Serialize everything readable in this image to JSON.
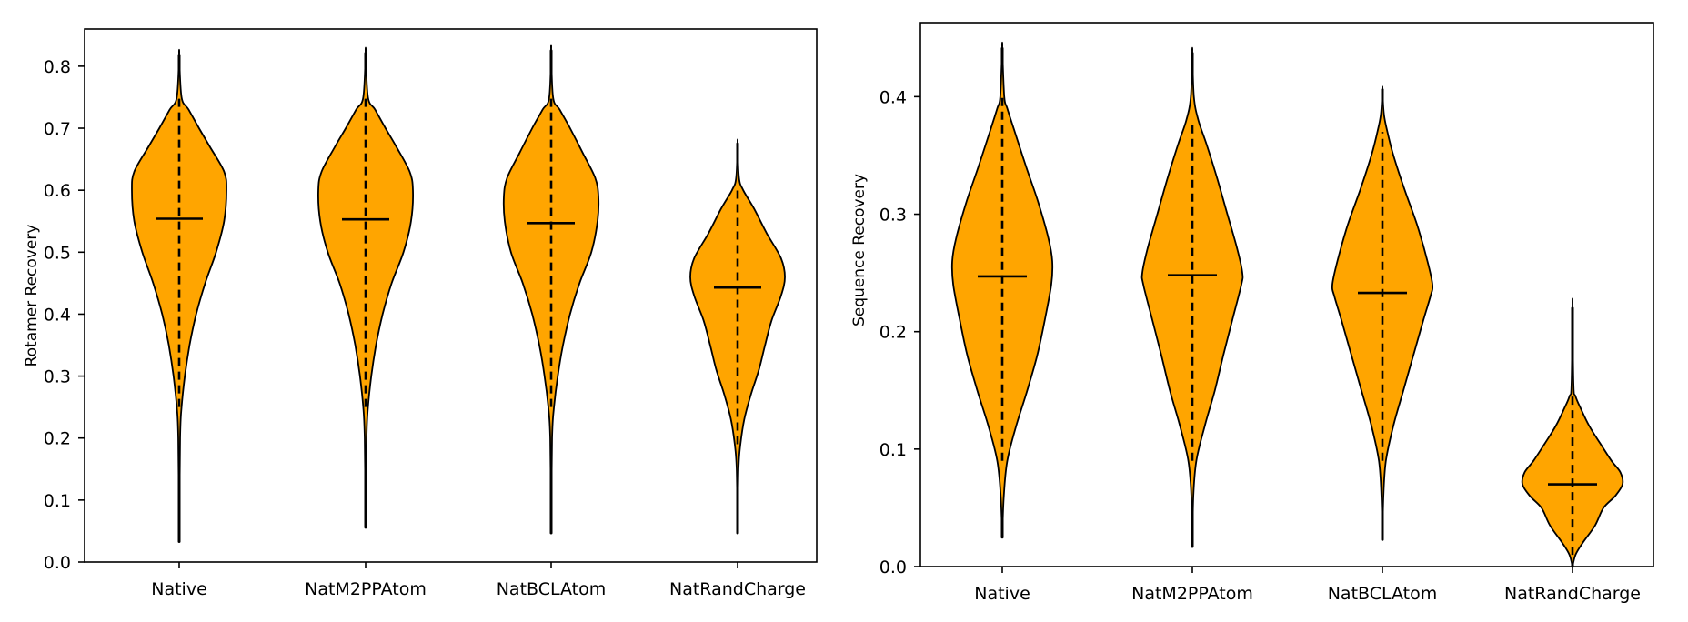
{
  "chart_data": [
    {
      "type": "violin",
      "title": "",
      "xlabel": "",
      "ylabel": "Rotamer Recovery",
      "ylim": [
        0.0,
        0.86
      ],
      "yticks": [
        0.0,
        0.1,
        0.2,
        0.3,
        0.4,
        0.5,
        0.6,
        0.7,
        0.8
      ],
      "ytick_labels": [
        "0.0",
        "0.1",
        "0.2",
        "0.3",
        "0.4",
        "0.5",
        "0.6",
        "0.7",
        "0.8"
      ],
      "categories": [
        "Native",
        "NatM2PPAtom",
        "NatBCLAtom",
        "NatRandCharge"
      ],
      "grid": false,
      "fill_color": "#FFA500",
      "edge_color": "#000000",
      "series": [
        {
          "name": "Native",
          "min": 0.033,
          "max": 0.818,
          "mean": 0.554,
          "profile": [
            [
              0.033,
              0.0
            ],
            [
              0.2,
              0.02
            ],
            [
              0.25,
              0.05
            ],
            [
              0.3,
              0.12
            ],
            [
              0.35,
              0.22
            ],
            [
              0.4,
              0.36
            ],
            [
              0.45,
              0.55
            ],
            [
              0.5,
              0.78
            ],
            [
              0.55,
              0.95
            ],
            [
              0.6,
              1.0
            ],
            [
              0.63,
              0.95
            ],
            [
              0.67,
              0.65
            ],
            [
              0.7,
              0.42
            ],
            [
              0.73,
              0.2
            ],
            [
              0.75,
              0.05
            ],
            [
              0.818,
              0.0
            ]
          ]
        },
        {
          "name": "NatM2PPAtom",
          "min": 0.056,
          "max": 0.821,
          "mean": 0.553,
          "profile": [
            [
              0.056,
              0.0
            ],
            [
              0.2,
              0.02
            ],
            [
              0.25,
              0.05
            ],
            [
              0.3,
              0.12
            ],
            [
              0.35,
              0.22
            ],
            [
              0.4,
              0.36
            ],
            [
              0.45,
              0.55
            ],
            [
              0.5,
              0.8
            ],
            [
              0.55,
              0.96
            ],
            [
              0.6,
              1.0
            ],
            [
              0.63,
              0.93
            ],
            [
              0.67,
              0.65
            ],
            [
              0.7,
              0.42
            ],
            [
              0.73,
              0.2
            ],
            [
              0.75,
              0.05
            ],
            [
              0.821,
              0.0
            ]
          ]
        },
        {
          "name": "NatBCLAtom",
          "min": 0.047,
          "max": 0.825,
          "mean": 0.547,
          "profile": [
            [
              0.047,
              0.0
            ],
            [
              0.2,
              0.02
            ],
            [
              0.25,
              0.06
            ],
            [
              0.3,
              0.14
            ],
            [
              0.35,
              0.25
            ],
            [
              0.4,
              0.4
            ],
            [
              0.45,
              0.6
            ],
            [
              0.5,
              0.85
            ],
            [
              0.55,
              0.98
            ],
            [
              0.59,
              1.0
            ],
            [
              0.62,
              0.93
            ],
            [
              0.66,
              0.67
            ],
            [
              0.7,
              0.4
            ],
            [
              0.73,
              0.18
            ],
            [
              0.75,
              0.04
            ],
            [
              0.825,
              0.0
            ]
          ]
        },
        {
          "name": "NatRandCharge",
          "min": 0.047,
          "max": 0.675,
          "mean": 0.443,
          "profile": [
            [
              0.047,
              0.0
            ],
            [
              0.15,
              0.02
            ],
            [
              0.19,
              0.06
            ],
            [
              0.23,
              0.14
            ],
            [
              0.27,
              0.28
            ],
            [
              0.31,
              0.45
            ],
            [
              0.35,
              0.58
            ],
            [
              0.39,
              0.72
            ],
            [
              0.43,
              0.92
            ],
            [
              0.46,
              1.0
            ],
            [
              0.49,
              0.92
            ],
            [
              0.53,
              0.62
            ],
            [
              0.57,
              0.35
            ],
            [
              0.6,
              0.12
            ],
            [
              0.62,
              0.03
            ],
            [
              0.675,
              0.0
            ]
          ]
        }
      ]
    },
    {
      "type": "violin",
      "title": "",
      "xlabel": "",
      "ylabel": "Sequence Recovery",
      "ylim": [
        0.0,
        0.463
      ],
      "yticks": [
        0.0,
        0.1,
        0.2,
        0.3,
        0.4
      ],
      "ytick_labels": [
        "0.0",
        "0.1",
        "0.2",
        "0.3",
        "0.4"
      ],
      "categories": [
        "Native",
        "NatM2PPAtom",
        "NatBCLAtom",
        "NatRandCharge"
      ],
      "grid": false,
      "fill_color": "#FFA500",
      "edge_color": "#000000",
      "series": [
        {
          "name": "Native",
          "min": 0.025,
          "max": 0.441,
          "mean": 0.247,
          "profile": [
            [
              0.025,
              0.0
            ],
            [
              0.06,
              0.03
            ],
            [
              0.09,
              0.1
            ],
            [
              0.12,
              0.28
            ],
            [
              0.15,
              0.5
            ],
            [
              0.18,
              0.7
            ],
            [
              0.21,
              0.85
            ],
            [
              0.24,
              0.98
            ],
            [
              0.26,
              1.0
            ],
            [
              0.28,
              0.92
            ],
            [
              0.31,
              0.72
            ],
            [
              0.34,
              0.48
            ],
            [
              0.37,
              0.25
            ],
            [
              0.39,
              0.1
            ],
            [
              0.4,
              0.04
            ],
            [
              0.441,
              0.0
            ]
          ]
        },
        {
          "name": "NatM2PPAtom",
          "min": 0.017,
          "max": 0.437,
          "mean": 0.248,
          "profile": [
            [
              0.017,
              0.0
            ],
            [
              0.06,
              0.02
            ],
            [
              0.09,
              0.08
            ],
            [
              0.12,
              0.25
            ],
            [
              0.15,
              0.45
            ],
            [
              0.18,
              0.62
            ],
            [
              0.21,
              0.8
            ],
            [
              0.24,
              0.98
            ],
            [
              0.25,
              1.0
            ],
            [
              0.27,
              0.9
            ],
            [
              0.3,
              0.7
            ],
            [
              0.33,
              0.5
            ],
            [
              0.36,
              0.28
            ],
            [
              0.38,
              0.12
            ],
            [
              0.4,
              0.03
            ],
            [
              0.437,
              0.0
            ]
          ]
        },
        {
          "name": "NatBCLAtom",
          "min": 0.023,
          "max": 0.406,
          "mean": 0.233,
          "profile": [
            [
              0.023,
              0.0
            ],
            [
              0.06,
              0.02
            ],
            [
              0.09,
              0.07
            ],
            [
              0.12,
              0.22
            ],
            [
              0.15,
              0.42
            ],
            [
              0.18,
              0.62
            ],
            [
              0.21,
              0.82
            ],
            [
              0.23,
              0.96
            ],
            [
              0.24,
              1.0
            ],
            [
              0.26,
              0.9
            ],
            [
              0.29,
              0.7
            ],
            [
              0.32,
              0.45
            ],
            [
              0.35,
              0.22
            ],
            [
              0.37,
              0.1
            ],
            [
              0.385,
              0.03
            ],
            [
              0.406,
              0.0
            ]
          ]
        },
        {
          "name": "NatRandCharge",
          "min": 0.0,
          "max": 0.22,
          "mean": 0.07,
          "profile": [
            [
              0.0,
              0.0
            ],
            [
              0.01,
              0.06
            ],
            [
              0.02,
              0.2
            ],
            [
              0.035,
              0.45
            ],
            [
              0.05,
              0.62
            ],
            [
              0.06,
              0.85
            ],
            [
              0.07,
              1.0
            ],
            [
              0.08,
              0.96
            ],
            [
              0.09,
              0.78
            ],
            [
              0.105,
              0.55
            ],
            [
              0.12,
              0.33
            ],
            [
              0.135,
              0.16
            ],
            [
              0.145,
              0.06
            ],
            [
              0.155,
              0.02
            ],
            [
              0.22,
              0.0
            ]
          ]
        }
      ]
    }
  ]
}
